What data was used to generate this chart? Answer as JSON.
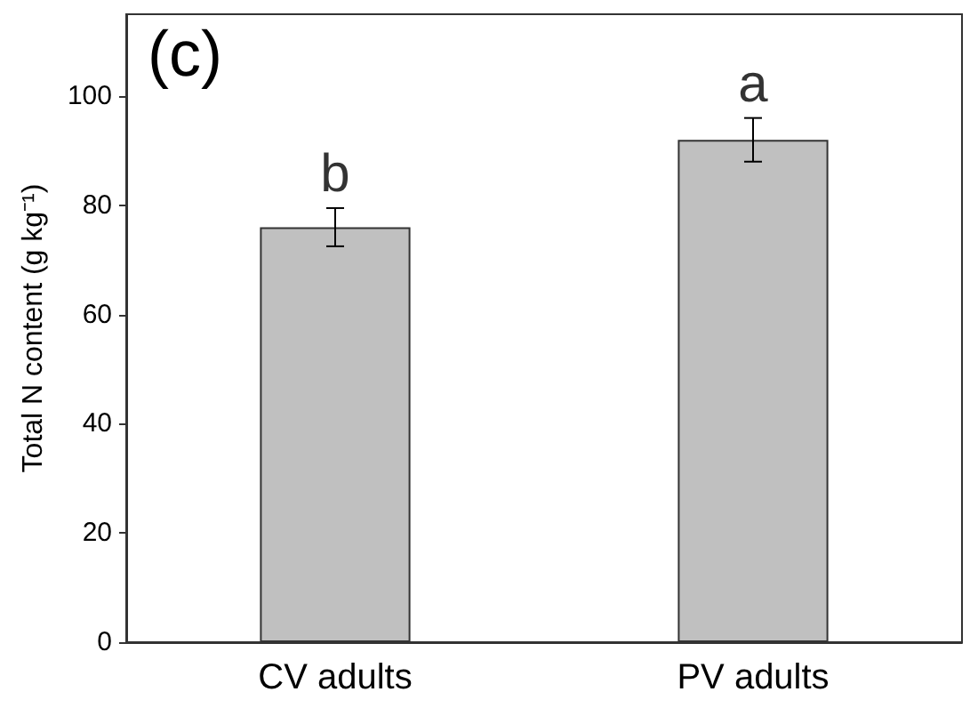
{
  "chart_data": {
    "type": "bar",
    "ylabel": "Total N content (g kg⁻¹)",
    "categories": [
      "CV adults",
      "PV adults"
    ],
    "values": [
      76,
      92
    ],
    "errors": [
      3.5,
      4
    ],
    "color": "#c0c0c0",
    "ylim": [
      0,
      115
    ],
    "yticks": [
      0,
      20,
      40,
      60,
      80,
      100
    ],
    "grid": false,
    "annotations": [
      "(c)",
      "b",
      "a"
    ]
  }
}
